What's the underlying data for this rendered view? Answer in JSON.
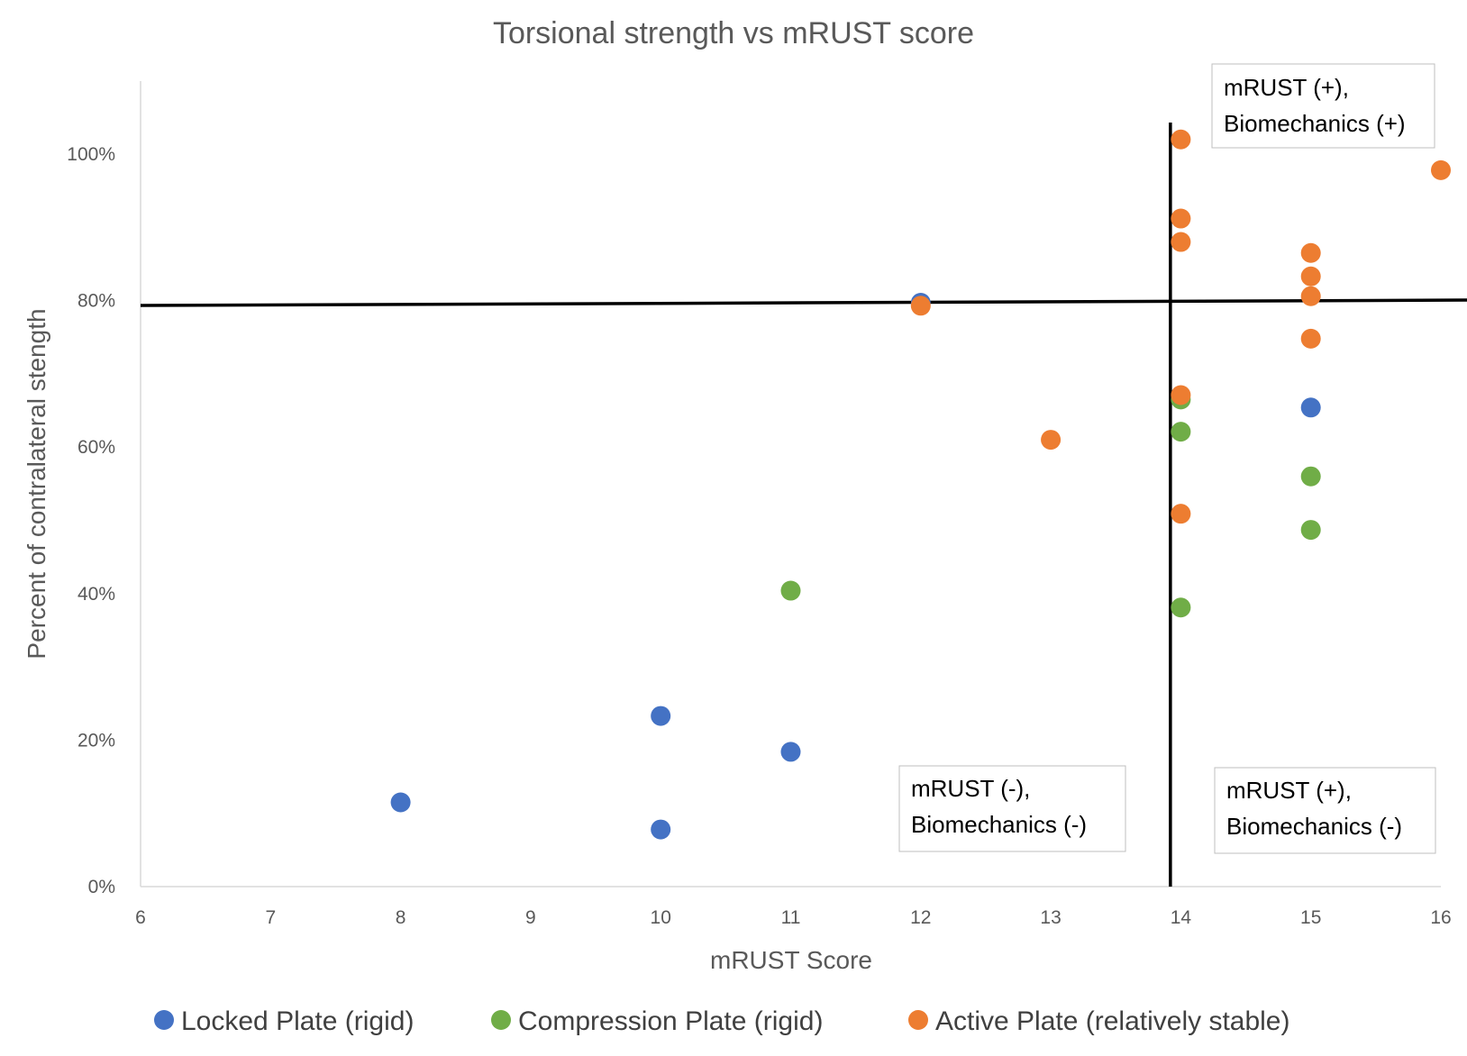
{
  "chart_data": {
    "type": "scatter",
    "title": "Torsional strength vs mRUST score",
    "xlabel": "mRUST Score",
    "ylabel": "Percent of contralateral stength",
    "xlim": [
      6,
      16
    ],
    "ylim": [
      0,
      1.1
    ],
    "xticks": [
      6,
      7,
      8,
      9,
      10,
      11,
      12,
      13,
      14,
      15,
      16
    ],
    "xtick_labels": [
      "6",
      "7",
      "8",
      "9",
      "10",
      "11",
      "12",
      "13",
      "14",
      "15",
      "16"
    ],
    "yticks": [
      0,
      0.2,
      0.4,
      0.6,
      0.8,
      1.0
    ],
    "ytick_labels": [
      "0%",
      "20%",
      "40%",
      "60%",
      "80%",
      "100%"
    ],
    "grid": false,
    "legend_position": "bottom",
    "series": [
      {
        "name": "Locked Plate (rigid)",
        "color": "#4472C4",
        "x": [
          8,
          10,
          10,
          11,
          12,
          15
        ],
        "y": [
          0.115,
          0.233,
          0.078,
          0.184,
          0.797,
          0.654
        ]
      },
      {
        "name": "Compression Plate (rigid)",
        "color": "#70AD47",
        "x": [
          11,
          14,
          14,
          14,
          15,
          15
        ],
        "y": [
          0.404,
          0.665,
          0.621,
          0.381,
          0.56,
          0.487
        ]
      },
      {
        "name": "Active Plate (relatively stable)",
        "color": "#ED7D31",
        "x": [
          12,
          13,
          14,
          14,
          14,
          14,
          14,
          15,
          15,
          15,
          15,
          16
        ],
        "y": [
          0.793,
          0.61,
          1.02,
          0.912,
          0.88,
          0.671,
          0.509,
          0.865,
          0.833,
          0.806,
          0.748,
          0.978
        ]
      }
    ],
    "reference_lines": [
      {
        "orientation": "horizontal",
        "value": 0.797,
        "color": "#000000"
      },
      {
        "orientation": "vertical",
        "value": 13.92,
        "color": "#000000"
      }
    ],
    "annotations": [
      {
        "line1": "mRUST (+),",
        "line2": "Biomechanics (+)",
        "quadrant": "top-right"
      },
      {
        "line1": "mRUST (-),",
        "line2": "Biomechanics (-)",
        "quadrant": "bottom-left"
      },
      {
        "line1": "mRUST (+),",
        "line2": "Biomechanics (-)",
        "quadrant": "bottom-right"
      }
    ]
  }
}
